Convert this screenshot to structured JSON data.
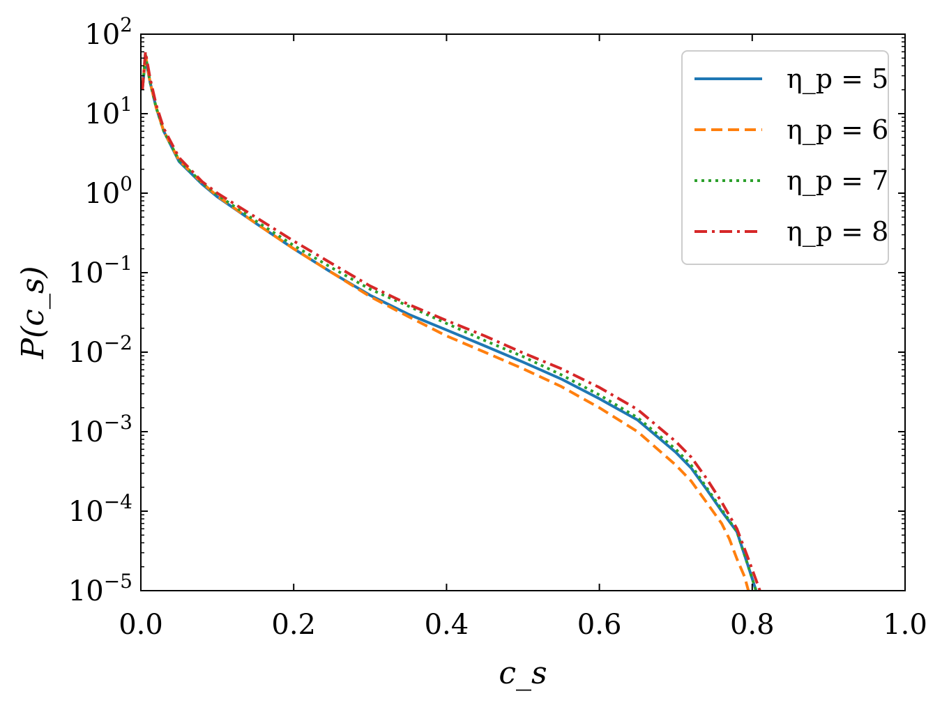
{
  "chart_data": {
    "type": "line",
    "title": "",
    "xlabel": "c_s",
    "ylabel": "P(c_s)",
    "xlim": [
      0.0,
      1.0
    ],
    "ylim": [
      1e-05,
      100
    ],
    "yscale": "log",
    "xticks": [
      0.0,
      0.2,
      0.4,
      0.6,
      0.8,
      1.0
    ],
    "xtick_labels": [
      "0.0",
      "0.2",
      "0.4",
      "0.6",
      "0.8",
      "1.0"
    ],
    "yticks": [
      {
        "value": 1e-05,
        "base": "10",
        "exp": "−5"
      },
      {
        "value": 0.0001,
        "base": "10",
        "exp": "−4"
      },
      {
        "value": 0.001,
        "base": "10",
        "exp": "−3"
      },
      {
        "value": 0.01,
        "base": "10",
        "exp": "−2"
      },
      {
        "value": 0.1,
        "base": "10",
        "exp": "−1"
      },
      {
        "value": 1,
        "base": "10",
        "exp": "0"
      },
      {
        "value": 10,
        "base": "10",
        "exp": "1"
      },
      {
        "value": 100,
        "base": "10",
        "exp": "2"
      }
    ],
    "legend_position": "top-right",
    "series": [
      {
        "name": "η_p = 5",
        "color": "#1f77b4",
        "style": "solid",
        "x": [
          0.002,
          0.006,
          0.012,
          0.02,
          0.03,
          0.05,
          0.08,
          0.1,
          0.15,
          0.2,
          0.25,
          0.3,
          0.35,
          0.4,
          0.45,
          0.5,
          0.55,
          0.6,
          0.65,
          0.7,
          0.72,
          0.74,
          0.76,
          0.78,
          0.795,
          0.805
        ],
        "y": [
          20,
          50,
          25,
          12,
          6,
          2.5,
          1.3,
          0.9,
          0.42,
          0.2,
          0.1,
          0.052,
          0.03,
          0.019,
          0.012,
          0.0075,
          0.0046,
          0.0026,
          0.0014,
          0.00055,
          0.00035,
          0.00019,
          0.0001,
          5.5e-05,
          2e-05,
          1e-05
        ]
      },
      {
        "name": "η_p = 6",
        "color": "#ff7f0e",
        "style": "dashed",
        "x": [
          0.002,
          0.006,
          0.012,
          0.02,
          0.03,
          0.05,
          0.08,
          0.1,
          0.15,
          0.2,
          0.25,
          0.3,
          0.35,
          0.4,
          0.45,
          0.5,
          0.55,
          0.6,
          0.65,
          0.7,
          0.72,
          0.74,
          0.76,
          0.77,
          0.78,
          0.79,
          0.795
        ],
        "y": [
          20,
          55,
          25,
          12,
          6,
          2.6,
          1.35,
          0.92,
          0.42,
          0.2,
          0.1,
          0.05,
          0.028,
          0.016,
          0.01,
          0.0062,
          0.0037,
          0.002,
          0.001,
          0.00038,
          0.00024,
          0.00013,
          7e-05,
          4.5e-05,
          2.5e-05,
          1.5e-05,
          1e-05
        ]
      },
      {
        "name": "η_p = 7",
        "color": "#2ca02c",
        "style": "dotted",
        "x": [
          0.002,
          0.006,
          0.012,
          0.02,
          0.03,
          0.05,
          0.08,
          0.1,
          0.15,
          0.2,
          0.25,
          0.3,
          0.35,
          0.4,
          0.45,
          0.5,
          0.55,
          0.6,
          0.65,
          0.7,
          0.72,
          0.74,
          0.76,
          0.78,
          0.795,
          0.805
        ],
        "y": [
          20,
          55,
          25,
          12,
          6,
          2.6,
          1.35,
          0.95,
          0.45,
          0.22,
          0.115,
          0.062,
          0.038,
          0.023,
          0.014,
          0.0088,
          0.0052,
          0.0029,
          0.0015,
          0.0006,
          0.00038,
          0.0002,
          0.000105,
          5.5e-05,
          2e-05,
          1e-05
        ]
      },
      {
        "name": "η_p = 8",
        "color": "#d62728",
        "style": "dashdot",
        "x": [
          0.002,
          0.006,
          0.012,
          0.02,
          0.03,
          0.05,
          0.08,
          0.1,
          0.15,
          0.2,
          0.25,
          0.3,
          0.35,
          0.4,
          0.45,
          0.5,
          0.55,
          0.6,
          0.65,
          0.7,
          0.72,
          0.74,
          0.76,
          0.78,
          0.795,
          0.81
        ],
        "y": [
          20,
          60,
          28,
          13,
          6.5,
          2.8,
          1.4,
          1.0,
          0.5,
          0.25,
          0.13,
          0.068,
          0.04,
          0.025,
          0.016,
          0.0098,
          0.0062,
          0.0036,
          0.0019,
          0.00075,
          0.00048,
          0.00026,
          0.00013,
          6e-05,
          2.5e-05,
          1e-05
        ]
      }
    ]
  }
}
